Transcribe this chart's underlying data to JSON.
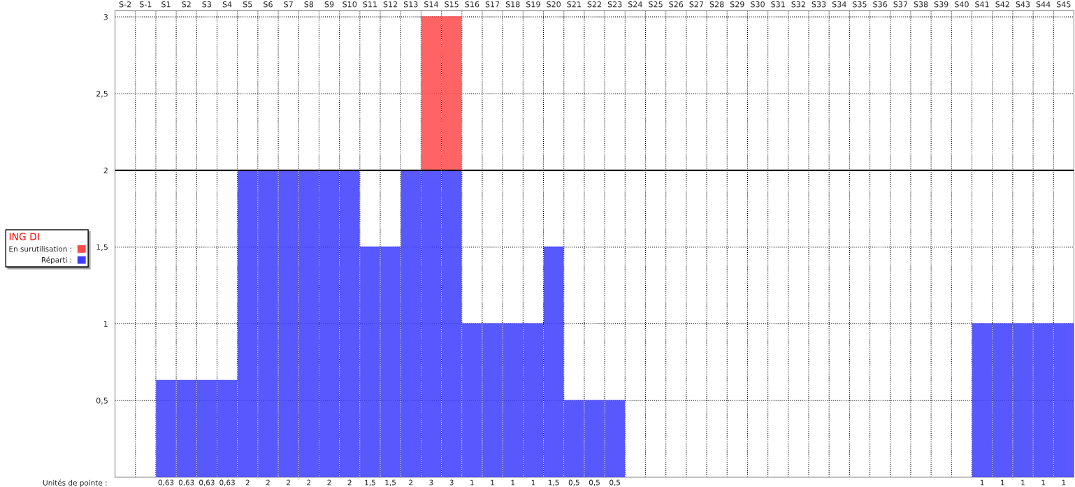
{
  "chart_data": {
    "type": "bar",
    "stacked": true,
    "categories": [
      "S-2",
      "S-1",
      "S1",
      "S2",
      "S3",
      "S4",
      "S5",
      "S6",
      "S7",
      "S8",
      "S9",
      "S10",
      "S11",
      "S12",
      "S13",
      "S14",
      "S15",
      "S16",
      "S17",
      "S18",
      "S19",
      "S20",
      "S21",
      "S22",
      "S23",
      "S24",
      "S25",
      "S26",
      "S27",
      "S28",
      "S29",
      "S30",
      "S31",
      "S32",
      "S33",
      "S34",
      "S35",
      "S36",
      "S37",
      "S38",
      "S39",
      "S40",
      "S41",
      "S42",
      "S43",
      "S44",
      "S45"
    ],
    "series": [
      {
        "name": "Réparti :",
        "color": "#3c3cff",
        "values": [
          null,
          null,
          0.63,
          0.63,
          0.63,
          0.63,
          2,
          2,
          2,
          2,
          2,
          2,
          1.5,
          1.5,
          2,
          2,
          2,
          1,
          1,
          1,
          1,
          1.5,
          0.5,
          0.5,
          0.5,
          null,
          null,
          null,
          null,
          null,
          null,
          null,
          null,
          null,
          null,
          null,
          null,
          null,
          null,
          null,
          null,
          null,
          1,
          1,
          1,
          1,
          1
        ]
      },
      {
        "name": "En surutilisation :",
        "color": "#ff4a4a",
        "values": [
          null,
          null,
          null,
          null,
          null,
          null,
          null,
          null,
          null,
          null,
          null,
          null,
          null,
          null,
          null,
          1,
          1,
          null,
          null,
          null,
          null,
          null,
          null,
          null,
          null,
          null,
          null,
          null,
          null,
          null,
          null,
          null,
          null,
          null,
          null,
          null,
          null,
          null,
          null,
          null,
          null,
          null,
          null,
          null,
          null,
          null,
          null
        ]
      }
    ],
    "totals": [
      null,
      null,
      "0,63",
      "0,63",
      "0,63",
      "0,63",
      "2",
      "2",
      "2",
      "2",
      "2",
      "2",
      "1,5",
      "1,5",
      "2",
      "3",
      "3",
      "1",
      "1",
      "1",
      "1",
      "1,5",
      "0,5",
      "0,5",
      "0,5",
      null,
      null,
      null,
      null,
      null,
      null,
      null,
      null,
      null,
      null,
      null,
      null,
      null,
      null,
      null,
      null,
      null,
      "1",
      "1",
      "1",
      "1",
      "1"
    ],
    "legend_title": "ING DI",
    "annotations": [
      "Unités de pointe :"
    ],
    "ylim": [
      0,
      3.04
    ],
    "yticks": [
      {
        "value": 0.5,
        "label": "0,5"
      },
      {
        "value": 1,
        "label": "1"
      },
      {
        "value": 1.5,
        "label": "1,5"
      },
      {
        "value": 2,
        "label": "2"
      },
      {
        "value": 2.5,
        "label": "2,5"
      },
      {
        "value": 3,
        "label": "3"
      }
    ],
    "ref_lines": [
      {
        "axis": "y",
        "value": 2,
        "color": "#000000"
      }
    ],
    "grid": true,
    "legend": "left"
  }
}
